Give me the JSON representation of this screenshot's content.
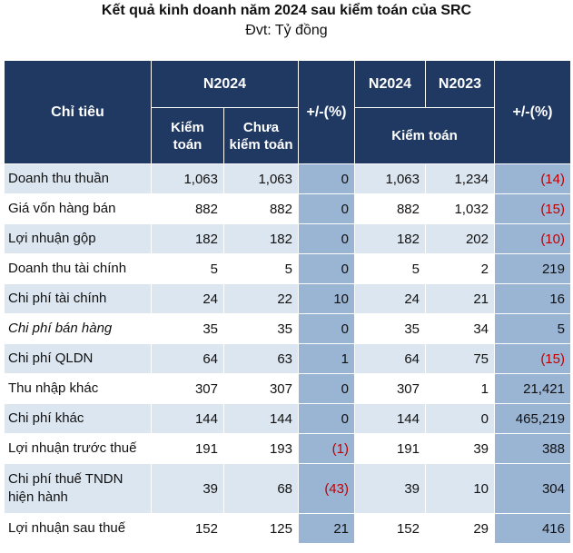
{
  "header": {
    "title": "Kết quả kinh doanh năm 2024 sau kiểm toán của SRC",
    "unit": "Đvt: Tỷ đồng"
  },
  "table": {
    "col_indicator": "Chỉ tiêu",
    "group_2024": "N2024",
    "col_audited_line1": "Kiểm",
    "col_audited_line2": "toán",
    "col_unaudited_line1": "Chưa",
    "col_unaudited_line2": "kiểm toán",
    "col_change_1": "+/-(%)",
    "col_n2024": "N2024",
    "col_n2023": "N2023",
    "group_audited": "Kiểm toán",
    "col_change_2": "+/-(%)",
    "rows": [
      {
        "label": "Doanh thu thuần",
        "audited": "1,063",
        "unaudited": "1,063",
        "chg1": "0",
        "n2024": "1,063",
        "n2023": "1,234",
        "chg2": "(14)"
      },
      {
        "label": "Giá vốn hàng bán",
        "audited": "882",
        "unaudited": "882",
        "chg1": "0",
        "n2024": "882",
        "n2023": "1,032",
        "chg2": "(15)"
      },
      {
        "label": "Lợi nhuận gộp",
        "audited": "182",
        "unaudited": "182",
        "chg1": "0",
        "n2024": "182",
        "n2023": "202",
        "chg2": "(10)"
      },
      {
        "label": "Doanh thu tài chính",
        "audited": "5",
        "unaudited": "5",
        "chg1": "0",
        "n2024": "5",
        "n2023": "2",
        "chg2": "219"
      },
      {
        "label": "Chi phí tài chính",
        "audited": "24",
        "unaudited": "22",
        "chg1": "10",
        "n2024": "24",
        "n2023": "21",
        "chg2": "16"
      },
      {
        "label": "Chi phí bán hàng",
        "audited": "35",
        "unaudited": "35",
        "chg1": "0",
        "n2024": "35",
        "n2023": "34",
        "chg2": "5"
      },
      {
        "label": "Chi phí QLDN",
        "audited": "64",
        "unaudited": "63",
        "chg1": "1",
        "n2024": "64",
        "n2023": "75",
        "chg2": "(15)"
      },
      {
        "label": "Thu nhập khác",
        "audited": "307",
        "unaudited": "307",
        "chg1": "0",
        "n2024": "307",
        "n2023": "1",
        "chg2": "21,421"
      },
      {
        "label": "Chi phí khác",
        "audited": "144",
        "unaudited": "144",
        "chg1": "0",
        "n2024": "144",
        "n2023": "0",
        "chg2": "465,219"
      },
      {
        "label": "Lợi nhuận trước thuế",
        "audited": "191",
        "unaudited": "193",
        "chg1": "(1)",
        "n2024": "191",
        "n2023": "39",
        "chg2": "388"
      },
      {
        "label": "Chi phí thuế TNDN hiện hành",
        "audited": "39",
        "unaudited": "68",
        "chg1": "(43)",
        "n2024": "39",
        "n2023": "10",
        "chg2": "304"
      },
      {
        "label": "Lợi nhuận sau thuế",
        "audited": "152",
        "unaudited": "125",
        "chg1": "21",
        "n2024": "152",
        "n2023": "29",
        "chg2": "416"
      }
    ]
  },
  "colors": {
    "header_bg": "#1f3962",
    "row_shade": "#dce6f0",
    "change_col_bg": "#9ab4d4",
    "negative": "#c00000"
  }
}
